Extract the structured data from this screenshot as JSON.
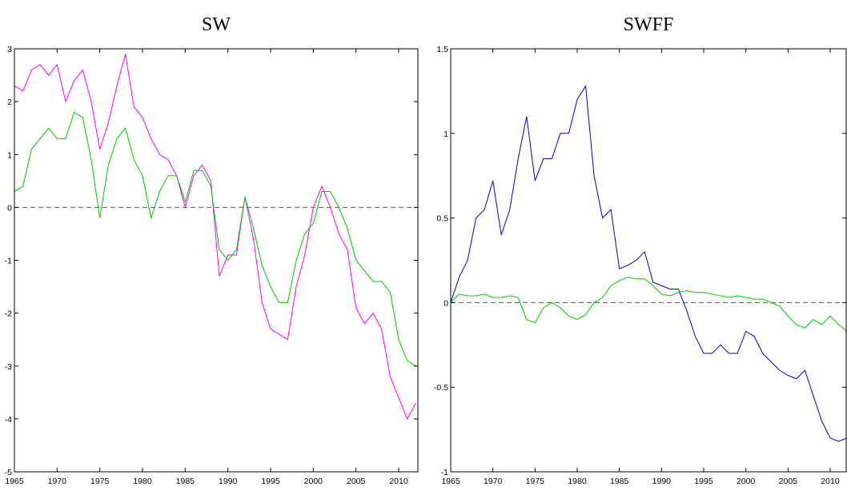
{
  "chart_data": [
    {
      "type": "line",
      "title": "SW",
      "x": [
        1965,
        1966,
        1967,
        1968,
        1969,
        1970,
        1971,
        1972,
        1973,
        1974,
        1975,
        1976,
        1977,
        1978,
        1979,
        1980,
        1981,
        1982,
        1983,
        1984,
        1985,
        1986,
        1987,
        1988,
        1989,
        1990,
        1991,
        1992,
        1993,
        1994,
        1995,
        1996,
        1997,
        1998,
        1999,
        2000,
        2001,
        2002,
        2003,
        2004,
        2005,
        2006,
        2007,
        2008,
        2009,
        2010,
        2011,
        2012
      ],
      "series": [
        {
          "color": "#ff00ff",
          "values": [
            2.3,
            2.2,
            2.6,
            2.7,
            2.5,
            2.7,
            2.0,
            2.4,
            2.6,
            2.0,
            1.1,
            1.6,
            2.3,
            2.9,
            1.9,
            1.7,
            1.3,
            1.0,
            0.9,
            0.6,
            0.0,
            0.6,
            0.8,
            0.5,
            -1.3,
            -0.9,
            -0.9,
            0.2,
            -0.6,
            -1.8,
            -2.3,
            -2.4,
            -2.5,
            -1.5,
            -0.9,
            0.0,
            0.4,
            0.0,
            -0.5,
            -0.8,
            -1.9,
            -2.2,
            -2.0,
            -2.3,
            -3.2,
            -3.6,
            -4.0,
            -3.7
          ]
        },
        {
          "color": "#00c800",
          "values": [
            0.3,
            0.4,
            1.1,
            1.3,
            1.5,
            1.3,
            1.3,
            1.8,
            1.7,
            0.9,
            -0.2,
            0.8,
            1.3,
            1.5,
            0.9,
            0.6,
            -0.2,
            0.3,
            0.6,
            0.6,
            0.1,
            0.7,
            0.7,
            0.4,
            -0.8,
            -1.0,
            -0.8,
            0.2,
            -0.4,
            -1.1,
            -1.5,
            -1.8,
            -1.8,
            -1.0,
            -0.5,
            -0.3,
            0.3,
            0.3,
            0.0,
            -0.4,
            -1.0,
            -1.2,
            -1.4,
            -1.4,
            -1.6,
            -2.5,
            -2.9,
            -3.0
          ]
        }
      ],
      "reference_line": 0,
      "xlim": [
        1965,
        2012.25
      ],
      "ylim": [
        -5,
        3
      ],
      "xticks": [
        1965,
        1970,
        1975,
        1980,
        1985,
        1990,
        1995,
        2000,
        2005,
        2010
      ],
      "yticks": [
        -5,
        -4,
        -3,
        -2,
        -1,
        0,
        1,
        2,
        3
      ]
    },
    {
      "type": "line",
      "title": "SWFF",
      "x": [
        1965,
        1966,
        1967,
        1968,
        1969,
        1970,
        1971,
        1972,
        1973,
        1974,
        1975,
        1976,
        1977,
        1978,
        1979,
        1980,
        1981,
        1982,
        1983,
        1984,
        1985,
        1986,
        1987,
        1988,
        1989,
        1990,
        1991,
        1992,
        1993,
        1994,
        1995,
        1996,
        1997,
        1998,
        1999,
        2000,
        2001,
        2002,
        2003,
        2004,
        2005,
        2006,
        2007,
        2008,
        2009,
        2010,
        2011,
        2012
      ],
      "series": [
        {
          "color": "#0000c8",
          "values": [
            0.0,
            0.15,
            0.25,
            0.5,
            0.55,
            0.72,
            0.4,
            0.55,
            0.85,
            1.1,
            0.72,
            0.85,
            0.85,
            1.0,
            1.0,
            1.2,
            1.28,
            0.75,
            0.5,
            0.55,
            0.2,
            0.22,
            0.25,
            0.3,
            0.12,
            0.1,
            0.08,
            0.08,
            -0.05,
            -0.2,
            -0.3,
            -0.3,
            -0.25,
            -0.3,
            -0.3,
            -0.17,
            -0.2,
            -0.3,
            -0.35,
            -0.4,
            -0.43,
            -0.45,
            -0.4,
            -0.55,
            -0.7,
            -0.8,
            -0.82,
            -0.8
          ]
        },
        {
          "color": "#00c800",
          "values": [
            0.0,
            0.05,
            0.04,
            0.04,
            0.05,
            0.03,
            0.03,
            0.04,
            0.03,
            -0.1,
            -0.12,
            -0.03,
            0.0,
            -0.03,
            -0.08,
            -0.1,
            -0.07,
            0.0,
            0.03,
            0.1,
            0.13,
            0.15,
            0.14,
            0.14,
            0.1,
            0.05,
            0.04,
            0.06,
            0.07,
            0.06,
            0.06,
            0.05,
            0.04,
            0.03,
            0.04,
            0.03,
            0.02,
            0.02,
            0.0,
            -0.02,
            -0.08,
            -0.13,
            -0.15,
            -0.1,
            -0.13,
            -0.08,
            -0.13,
            -0.17
          ]
        }
      ],
      "reference_line": 0,
      "xlim": [
        1965,
        2011.9
      ],
      "ylim": [
        -1,
        1.5
      ],
      "xticks": [
        1965,
        1970,
        1975,
        1980,
        1985,
        1990,
        1995,
        2000,
        2005,
        2010
      ],
      "yticks": [
        -1,
        -0.5,
        0,
        0.5,
        1,
        1.5
      ]
    }
  ]
}
